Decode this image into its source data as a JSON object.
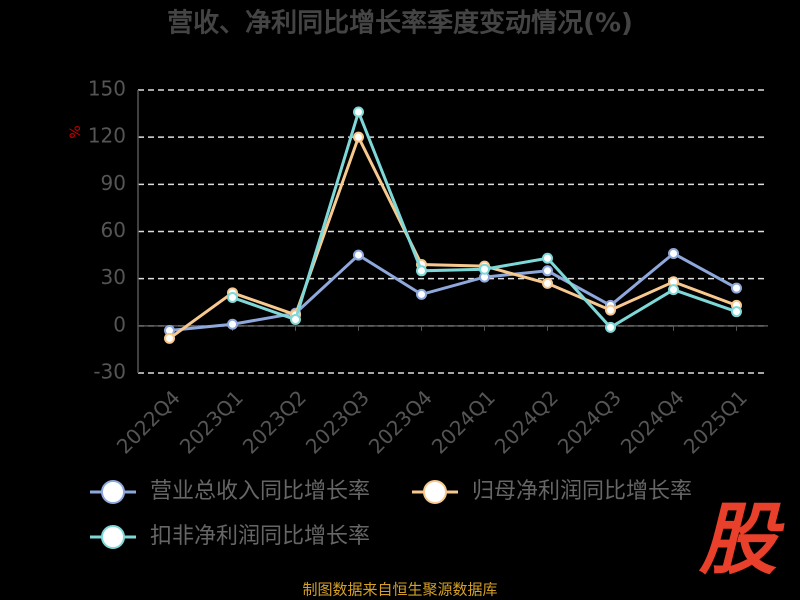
{
  "chart_data": {
    "type": "line",
    "title": "营收、净利同比增长率季度变动情况(%)",
    "y_unit": "%",
    "categories": [
      "2022Q4",
      "2023Q1",
      "2023Q2",
      "2023Q3",
      "2023Q4",
      "2024Q1",
      "2024Q2",
      "2024Q3",
      "2024Q4",
      "2025Q1"
    ],
    "series": [
      {
        "name": "营业总收入同比增长率",
        "color": "#8fa8dc",
        "values": [
          -3,
          1,
          8,
          45,
          20,
          31,
          35,
          13,
          46,
          24
        ]
      },
      {
        "name": "归母净利润同比增长率",
        "color": "#f7c98f",
        "values": [
          -8,
          21,
          7,
          120,
          39,
          38,
          27,
          10,
          28,
          13
        ]
      },
      {
        "name": "扣非净利润同比增长率",
        "color": "#7fd8d8",
        "values": [
          null,
          18,
          4,
          136,
          35,
          36,
          43,
          -1,
          23,
          9
        ]
      }
    ],
    "ylim": [
      -30,
      150
    ],
    "yticks": [
      -30,
      0,
      30,
      60,
      90,
      120,
      150
    ],
    "grid": true
  },
  "footer": {
    "source": "制图数据来自恒生聚源数据库",
    "logo": "股"
  }
}
